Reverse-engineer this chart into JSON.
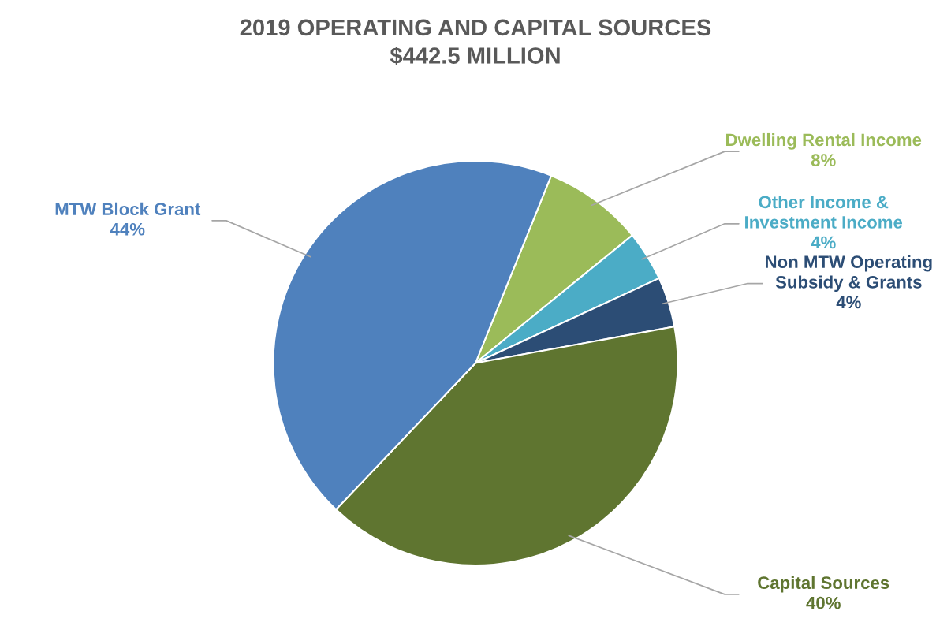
{
  "chart_data": {
    "type": "pie",
    "title": "2019 OPERATING AND CAPITAL SOURCES\n$442.5 MILLION",
    "categories": [
      "Dwelling Rental Income",
      "Other Income &\nInvestment Income",
      "Non MTW Operating\nSubsidy & Grants",
      "Capital Sources",
      "MTW Block Grant"
    ],
    "values": [
      8,
      4,
      4,
      40,
      44
    ],
    "value_labels": [
      "8%",
      "4%",
      "4%",
      "40%",
      "44%"
    ],
    "colors": [
      "#9bbb59",
      "#4bacc6",
      "#2c4d75",
      "#5f7530",
      "#4f81bd"
    ],
    "legend": false
  }
}
